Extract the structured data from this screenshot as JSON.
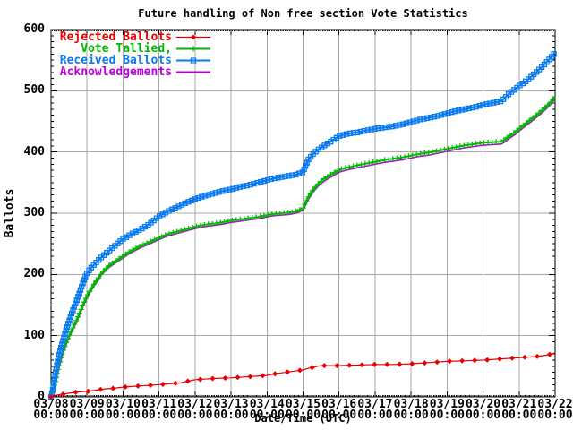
{
  "title": "Future handling of Non free section Vote Statistics",
  "axes": {
    "ylabel": "Ballots",
    "xlabel": "Date/Time (UTC)",
    "yticks": [
      "0",
      "100",
      "200",
      "300",
      "400",
      "500",
      "600"
    ],
    "xticks": [
      {
        "date": "03/08",
        "time": "00:00"
      },
      {
        "date": "03/09",
        "time": "00:00"
      },
      {
        "date": "03/10",
        "time": "00:00"
      },
      {
        "date": "03/11",
        "time": "00:00"
      },
      {
        "date": "03/12",
        "time": "00:00"
      },
      {
        "date": "03/13",
        "time": "00:00"
      },
      {
        "date": "03/14",
        "time": "00:00"
      },
      {
        "date": "03/15",
        "time": "00:00"
      },
      {
        "date": "03/16",
        "time": "00:00"
      },
      {
        "date": "03/17",
        "time": "00:00"
      },
      {
        "date": "03/18",
        "time": "00:00"
      },
      {
        "date": "03/19",
        "time": "00:00"
      },
      {
        "date": "03/20",
        "time": "00:00"
      },
      {
        "date": "03/21",
        "time": "00:00"
      },
      {
        "date": "03/22",
        "time": "00:00"
      }
    ]
  },
  "legend": {
    "items": [
      {
        "label": "Rejected Ballots",
        "color": "#e60000",
        "marker": "diamond"
      },
      {
        "label": "Vote Tallied,",
        "color": "#00b800",
        "marker": "plus"
      },
      {
        "label": "Received Ballots",
        "color": "#0a7af0",
        "marker": "square"
      },
      {
        "label": "Acknowledgements",
        "color": "#bb00d9",
        "marker": "none"
      }
    ]
  },
  "chart_data": {
    "type": "line",
    "title": "Future handling of Non free section Vote Statistics",
    "xlabel": "Date/Time (UTC)",
    "ylabel": "Ballots",
    "x_unit": "days since 03/08 00:00 UTC",
    "xlim": [
      0,
      14
    ],
    "ylim": [
      0,
      600
    ],
    "grid": true,
    "legend_position": "top-left",
    "series": [
      {
        "name": "Acknowledgements",
        "color": "#bb00d9",
        "marker": "none",
        "points": [
          [
            0,
            0
          ],
          [
            0.1,
            18
          ],
          [
            0.2,
            42
          ],
          [
            0.3,
            65
          ],
          [
            0.4,
            82
          ],
          [
            0.5,
            97
          ],
          [
            0.6,
            109
          ],
          [
            0.7,
            121
          ],
          [
            0.8,
            135
          ],
          [
            0.9,
            149
          ],
          [
            1.0,
            162
          ],
          [
            1.1,
            172
          ],
          [
            1.2,
            182
          ],
          [
            1.3,
            190
          ],
          [
            1.4,
            199
          ],
          [
            1.5,
            205
          ],
          [
            1.6,
            211
          ],
          [
            1.75,
            217
          ],
          [
            1.9,
            223
          ],
          [
            2.0,
            227
          ],
          [
            2.15,
            233
          ],
          [
            2.3,
            238
          ],
          [
            2.5,
            244
          ],
          [
            2.7,
            249
          ],
          [
            2.85,
            253
          ],
          [
            3.0,
            257
          ],
          [
            3.25,
            263
          ],
          [
            3.5,
            267
          ],
          [
            3.75,
            271
          ],
          [
            4.0,
            275
          ],
          [
            4.25,
            278
          ],
          [
            4.5,
            280
          ],
          [
            4.75,
            282
          ],
          [
            5.0,
            285
          ],
          [
            5.25,
            287
          ],
          [
            5.5,
            289
          ],
          [
            5.75,
            291
          ],
          [
            6.0,
            294
          ],
          [
            6.2,
            296
          ],
          [
            6.4,
            297
          ],
          [
            6.6,
            298
          ],
          [
            6.8,
            300
          ],
          [
            7.0,
            305
          ],
          [
            7.05,
            311
          ],
          [
            7.15,
            323
          ],
          [
            7.3,
            336
          ],
          [
            7.45,
            346
          ],
          [
            7.6,
            353
          ],
          [
            7.8,
            360
          ],
          [
            8.0,
            367
          ],
          [
            8.25,
            371
          ],
          [
            8.5,
            374
          ],
          [
            8.75,
            377
          ],
          [
            9.0,
            380
          ],
          [
            9.25,
            383
          ],
          [
            9.5,
            385
          ],
          [
            9.75,
            387
          ],
          [
            10.0,
            390
          ],
          [
            10.25,
            393
          ],
          [
            10.5,
            395
          ],
          [
            10.75,
            398
          ],
          [
            11.0,
            401
          ],
          [
            11.25,
            404
          ],
          [
            11.5,
            407
          ],
          [
            11.75,
            409
          ],
          [
            12.0,
            411
          ],
          [
            12.25,
            412
          ],
          [
            12.5,
            413
          ],
          [
            12.6,
            416
          ],
          [
            12.7,
            421
          ],
          [
            12.8,
            425
          ],
          [
            12.9,
            429
          ],
          [
            13.0,
            434
          ],
          [
            13.15,
            441
          ],
          [
            13.3,
            448
          ],
          [
            13.45,
            455
          ],
          [
            13.6,
            462
          ],
          [
            13.75,
            470
          ],
          [
            13.9,
            479
          ],
          [
            14.0,
            487
          ]
        ]
      },
      {
        "name": "Vote Tallied",
        "color": "#00b800",
        "marker": "plus",
        "points": [
          [
            0,
            0
          ],
          [
            0.1,
            20
          ],
          [
            0.2,
            45
          ],
          [
            0.3,
            68
          ],
          [
            0.4,
            85
          ],
          [
            0.5,
            100
          ],
          [
            0.6,
            112
          ],
          [
            0.7,
            124
          ],
          [
            0.8,
            138
          ],
          [
            0.9,
            152
          ],
          [
            1.0,
            165
          ],
          [
            1.1,
            175
          ],
          [
            1.2,
            185
          ],
          [
            1.3,
            193
          ],
          [
            1.4,
            202
          ],
          [
            1.5,
            208
          ],
          [
            1.6,
            214
          ],
          [
            1.75,
            220
          ],
          [
            1.9,
            226
          ],
          [
            2.0,
            230
          ],
          [
            2.15,
            236
          ],
          [
            2.3,
            241
          ],
          [
            2.5,
            247
          ],
          [
            2.7,
            252
          ],
          [
            2.85,
            256
          ],
          [
            3.0,
            260
          ],
          [
            3.25,
            266
          ],
          [
            3.5,
            270
          ],
          [
            3.75,
            274
          ],
          [
            4.0,
            278
          ],
          [
            4.25,
            281
          ],
          [
            4.5,
            283
          ],
          [
            4.75,
            285
          ],
          [
            5.0,
            288
          ],
          [
            5.25,
            290
          ],
          [
            5.5,
            292
          ],
          [
            5.75,
            294
          ],
          [
            6.0,
            297
          ],
          [
            6.2,
            299
          ],
          [
            6.4,
            300
          ],
          [
            6.6,
            301
          ],
          [
            6.8,
            303
          ],
          [
            7.0,
            308
          ],
          [
            7.05,
            315
          ],
          [
            7.15,
            327
          ],
          [
            7.3,
            340
          ],
          [
            7.45,
            350
          ],
          [
            7.6,
            357
          ],
          [
            7.8,
            364
          ],
          [
            8.0,
            371
          ],
          [
            8.25,
            375
          ],
          [
            8.5,
            378
          ],
          [
            8.75,
            381
          ],
          [
            9.0,
            384
          ],
          [
            9.25,
            387
          ],
          [
            9.5,
            389
          ],
          [
            9.75,
            391
          ],
          [
            10.0,
            394
          ],
          [
            10.25,
            397
          ],
          [
            10.5,
            399
          ],
          [
            10.75,
            402
          ],
          [
            11.0,
            405
          ],
          [
            11.25,
            408
          ],
          [
            11.5,
            411
          ],
          [
            11.75,
            413
          ],
          [
            12.0,
            415
          ],
          [
            12.25,
            416
          ],
          [
            12.5,
            417
          ],
          [
            12.6,
            420
          ],
          [
            12.7,
            425
          ],
          [
            12.8,
            429
          ],
          [
            12.9,
            433
          ],
          [
            13.0,
            438
          ],
          [
            13.15,
            445
          ],
          [
            13.3,
            452
          ],
          [
            13.45,
            459
          ],
          [
            13.6,
            466
          ],
          [
            13.75,
            474
          ],
          [
            13.9,
            483
          ],
          [
            14.0,
            491
          ]
        ]
      },
      {
        "name": "Received Ballots",
        "color": "#0a7af0",
        "marker": "square",
        "points": [
          [
            0,
            0
          ],
          [
            0.05,
            12
          ],
          [
            0.1,
            30
          ],
          [
            0.15,
            48
          ],
          [
            0.2,
            62
          ],
          [
            0.3,
            85
          ],
          [
            0.37,
            100
          ],
          [
            0.45,
            115
          ],
          [
            0.55,
            132
          ],
          [
            0.65,
            148
          ],
          [
            0.75,
            163
          ],
          [
            0.85,
            180
          ],
          [
            0.95,
            196
          ],
          [
            1.0,
            202
          ],
          [
            1.1,
            210
          ],
          [
            1.2,
            216
          ],
          [
            1.3,
            222
          ],
          [
            1.4,
            228
          ],
          [
            1.5,
            233
          ],
          [
            1.6,
            238
          ],
          [
            1.7,
            243
          ],
          [
            1.8,
            248
          ],
          [
            1.9,
            253
          ],
          [
            2.0,
            258
          ],
          [
            2.15,
            263
          ],
          [
            2.3,
            268
          ],
          [
            2.5,
            274
          ],
          [
            2.7,
            281
          ],
          [
            2.85,
            288
          ],
          [
            3.0,
            295
          ],
          [
            3.25,
            303
          ],
          [
            3.5,
            310
          ],
          [
            3.75,
            317
          ],
          [
            4.0,
            323
          ],
          [
            4.25,
            328
          ],
          [
            4.5,
            332
          ],
          [
            4.75,
            336
          ],
          [
            5.0,
            339
          ],
          [
            5.25,
            343
          ],
          [
            5.5,
            346
          ],
          [
            5.75,
            350
          ],
          [
            6.0,
            354
          ],
          [
            6.2,
            357
          ],
          [
            6.4,
            359
          ],
          [
            6.6,
            361
          ],
          [
            6.8,
            363
          ],
          [
            7.0,
            367
          ],
          [
            7.05,
            375
          ],
          [
            7.15,
            388
          ],
          [
            7.3,
            398
          ],
          [
            7.45,
            405
          ],
          [
            7.6,
            411
          ],
          [
            7.8,
            418
          ],
          [
            8.0,
            426
          ],
          [
            8.25,
            430
          ],
          [
            8.5,
            432
          ],
          [
            8.75,
            435
          ],
          [
            9.0,
            438
          ],
          [
            9.25,
            440
          ],
          [
            9.5,
            442
          ],
          [
            9.75,
            445
          ],
          [
            10.0,
            449
          ],
          [
            10.25,
            453
          ],
          [
            10.5,
            456
          ],
          [
            10.75,
            459
          ],
          [
            11.0,
            463
          ],
          [
            11.25,
            467
          ],
          [
            11.5,
            470
          ],
          [
            11.75,
            473
          ],
          [
            12.0,
            477
          ],
          [
            12.25,
            480
          ],
          [
            12.5,
            483
          ],
          [
            12.6,
            488
          ],
          [
            12.7,
            494
          ],
          [
            12.8,
            499
          ],
          [
            12.9,
            503
          ],
          [
            13.0,
            508
          ],
          [
            13.15,
            514
          ],
          [
            13.3,
            521
          ],
          [
            13.45,
            529
          ],
          [
            13.6,
            537
          ],
          [
            13.75,
            546
          ],
          [
            13.9,
            555
          ],
          [
            14.0,
            563
          ]
        ]
      },
      {
        "name": "Rejected Ballots",
        "color": "#e60000",
        "marker": "diamond",
        "points": [
          [
            0,
            0
          ],
          [
            0.1,
            2
          ],
          [
            0.25,
            4
          ],
          [
            0.4,
            5
          ],
          [
            0.5,
            6
          ],
          [
            0.75,
            8
          ],
          [
            1.0,
            9
          ],
          [
            1.25,
            11
          ],
          [
            1.5,
            13
          ],
          [
            1.75,
            14
          ],
          [
            2.0,
            16
          ],
          [
            2.25,
            17
          ],
          [
            2.5,
            18
          ],
          [
            2.75,
            19
          ],
          [
            3.0,
            20
          ],
          [
            3.2,
            21
          ],
          [
            3.4,
            22
          ],
          [
            3.6,
            23
          ],
          [
            3.75,
            25
          ],
          [
            4.0,
            28
          ],
          [
            4.25,
            29
          ],
          [
            4.5,
            30
          ],
          [
            5.0,
            31
          ],
          [
            5.5,
            33
          ],
          [
            6.0,
            35
          ],
          [
            6.25,
            38
          ],
          [
            6.5,
            40
          ],
          [
            6.75,
            42
          ],
          [
            7.0,
            44
          ],
          [
            7.1,
            46
          ],
          [
            7.25,
            48
          ],
          [
            7.4,
            50
          ],
          [
            7.5,
            51
          ],
          [
            8.0,
            51
          ],
          [
            8.5,
            52
          ],
          [
            9.0,
            53
          ],
          [
            9.5,
            53
          ],
          [
            10.0,
            54
          ],
          [
            10.5,
            56
          ],
          [
            11.0,
            58
          ],
          [
            11.5,
            59
          ],
          [
            12.0,
            60
          ],
          [
            12.5,
            62
          ],
          [
            13.0,
            64
          ],
          [
            13.25,
            65
          ],
          [
            13.5,
            66
          ],
          [
            13.75,
            68
          ],
          [
            13.9,
            70
          ],
          [
            14.0,
            72
          ]
        ]
      }
    ]
  }
}
